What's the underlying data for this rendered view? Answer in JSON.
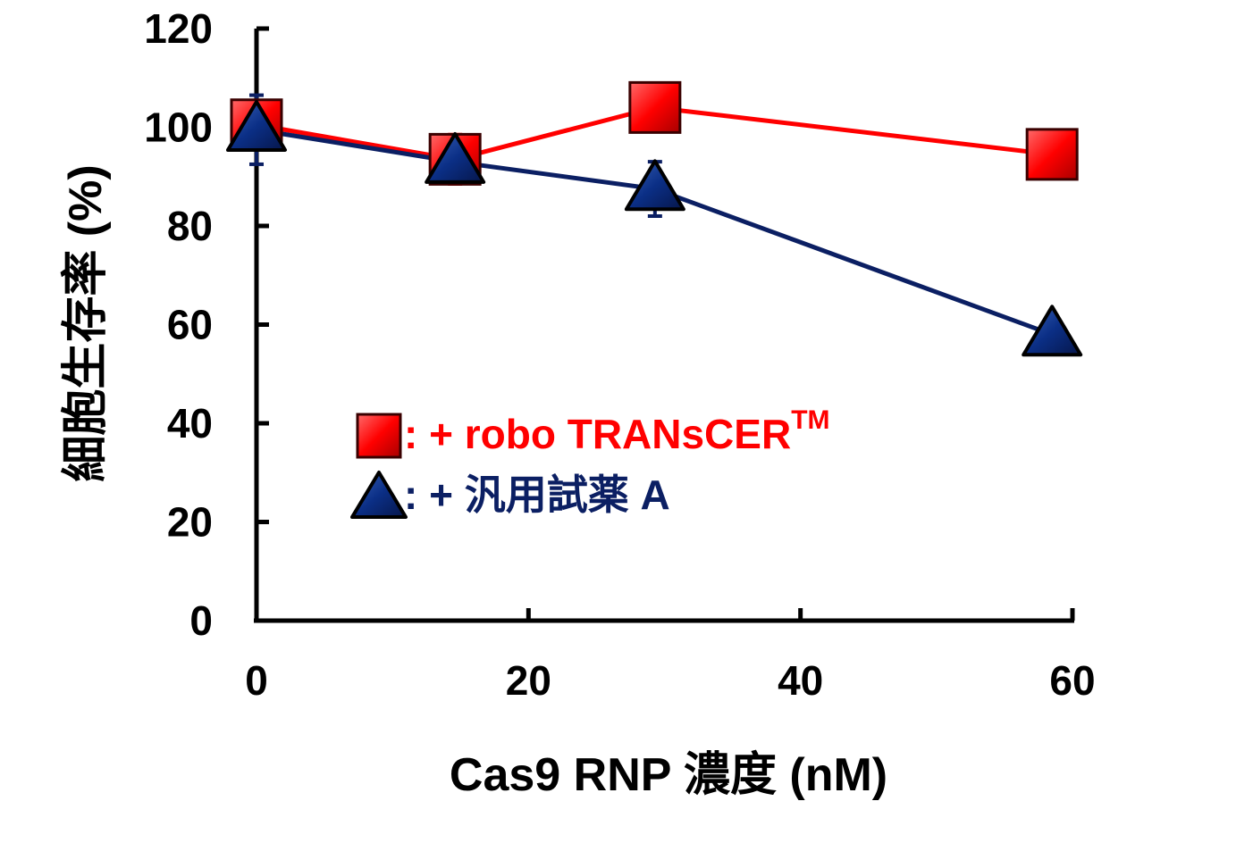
{
  "chart_data": {
    "type": "line",
    "xlabel": "Cas9 RNP 濃度 (nM)",
    "ylabel": "細胞生存率 (%)",
    "xlim": [
      0,
      60
    ],
    "ylim": [
      0,
      120
    ],
    "xticks": [
      "0",
      "20",
      "40",
      "60"
    ],
    "yticks": [
      "0",
      "20",
      "40",
      "60",
      "80",
      "100",
      "120"
    ],
    "grid": false,
    "legend_position": "center-left",
    "series": [
      {
        "name": "robo TRANsCER",
        "legend_label": ": + robo TRANsCER",
        "legend_superscript": "TM",
        "marker": "square",
        "color": "#ff0000",
        "x": [
          0,
          14.6,
          29.3,
          58.5
        ],
        "y": [
          100.5,
          93.5,
          104,
          94.5
        ],
        "error": [
          0,
          5,
          4,
          0
        ]
      },
      {
        "name": "汎用試薬 A",
        "legend_label": ": + 汎用試薬 A",
        "marker": "triangle",
        "color": "#0b1f63",
        "x": [
          0,
          14.6,
          29.3,
          58.5
        ],
        "y": [
          99.5,
          93,
          87.5,
          58
        ],
        "error": [
          7,
          3,
          5.5,
          0
        ]
      }
    ]
  }
}
